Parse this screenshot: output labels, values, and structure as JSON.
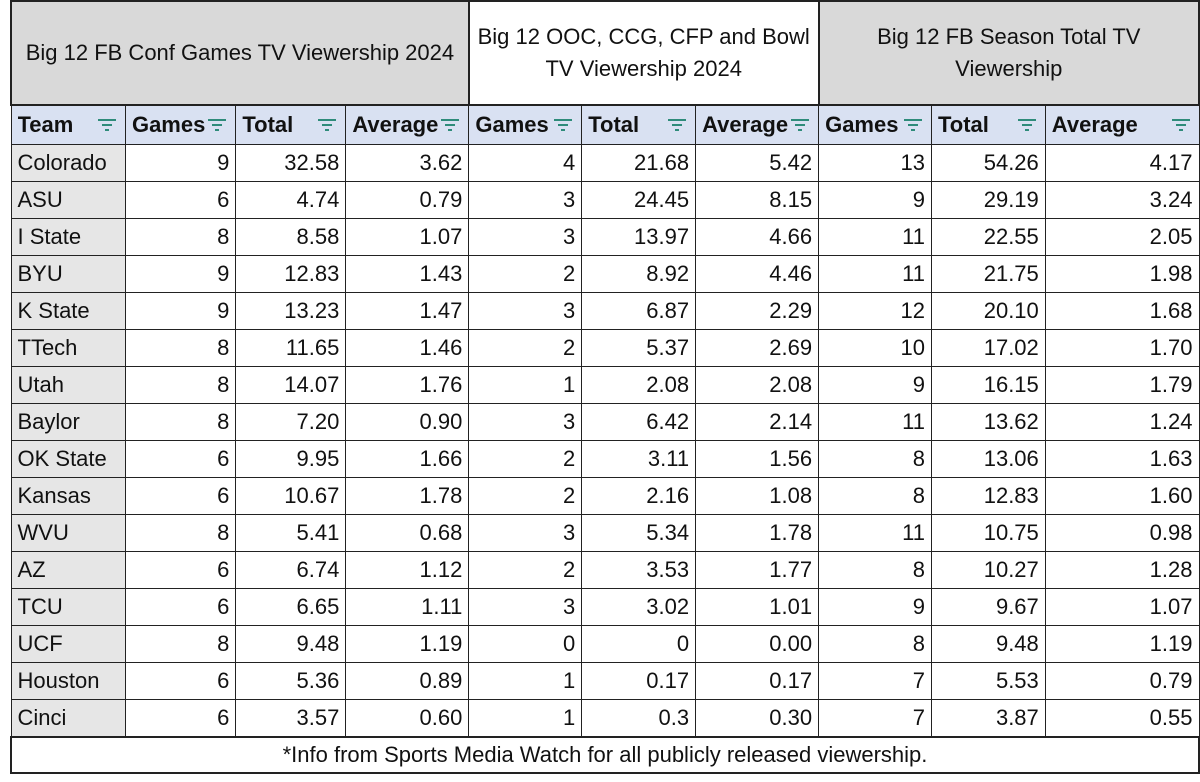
{
  "group_headers": [
    "Big 12 FB Conf Games TV Viewership 2024",
    "Big 12 OOC, CCG, CFP and Bowl TV Viewership 2024",
    "Big 12 FB Season Total TV Viewership"
  ],
  "columns": [
    "Team",
    "Games",
    "Total",
    "Average",
    "Games",
    "Total",
    "Average",
    "Games",
    "Total",
    "Average"
  ],
  "rows": [
    [
      "Colorado",
      "9",
      "32.58",
      "3.62",
      "4",
      "21.68",
      "5.42",
      "13",
      "54.26",
      "4.17"
    ],
    [
      "ASU",
      "6",
      "4.74",
      "0.79",
      "3",
      "24.45",
      "8.15",
      "9",
      "29.19",
      "3.24"
    ],
    [
      "I State",
      "8",
      "8.58",
      "1.07",
      "3",
      "13.97",
      "4.66",
      "11",
      "22.55",
      "2.05"
    ],
    [
      "BYU",
      "9",
      "12.83",
      "1.43",
      "2",
      "8.92",
      "4.46",
      "11",
      "21.75",
      "1.98"
    ],
    [
      "K State",
      "9",
      "13.23",
      "1.47",
      "3",
      "6.87",
      "2.29",
      "12",
      "20.10",
      "1.68"
    ],
    [
      "TTech",
      "8",
      "11.65",
      "1.46",
      "2",
      "5.37",
      "2.69",
      "10",
      "17.02",
      "1.70"
    ],
    [
      "Utah",
      "8",
      "14.07",
      "1.76",
      "1",
      "2.08",
      "2.08",
      "9",
      "16.15",
      "1.79"
    ],
    [
      "Baylor",
      "8",
      "7.20",
      "0.90",
      "3",
      "6.42",
      "2.14",
      "11",
      "13.62",
      "1.24"
    ],
    [
      "OK State",
      "6",
      "9.95",
      "1.66",
      "2",
      "3.11",
      "1.56",
      "8",
      "13.06",
      "1.63"
    ],
    [
      "Kansas",
      "6",
      "10.67",
      "1.78",
      "2",
      "2.16",
      "1.08",
      "8",
      "12.83",
      "1.60"
    ],
    [
      "WVU",
      "8",
      "5.41",
      "0.68",
      "3",
      "5.34",
      "1.78",
      "11",
      "10.75",
      "0.98"
    ],
    [
      "AZ",
      "6",
      "6.74",
      "1.12",
      "2",
      "3.53",
      "1.77",
      "8",
      "10.27",
      "1.28"
    ],
    [
      "TCU",
      "6",
      "6.65",
      "1.11",
      "3",
      "3.02",
      "1.01",
      "9",
      "9.67",
      "1.07"
    ],
    [
      "UCF",
      "8",
      "9.48",
      "1.19",
      "0",
      "0",
      "0.00",
      "8",
      "9.48",
      "1.19"
    ],
    [
      "Houston",
      "6",
      "5.36",
      "0.89",
      "1",
      "0.17",
      "0.17",
      "7",
      "5.53",
      "0.79"
    ],
    [
      "Cinci",
      "6",
      "3.57",
      "0.60",
      "1",
      "0.3",
      "0.30",
      "7",
      "3.87",
      "0.55"
    ]
  ],
  "footer": "*Info from Sports Media Watch for all publicly released viewership."
}
